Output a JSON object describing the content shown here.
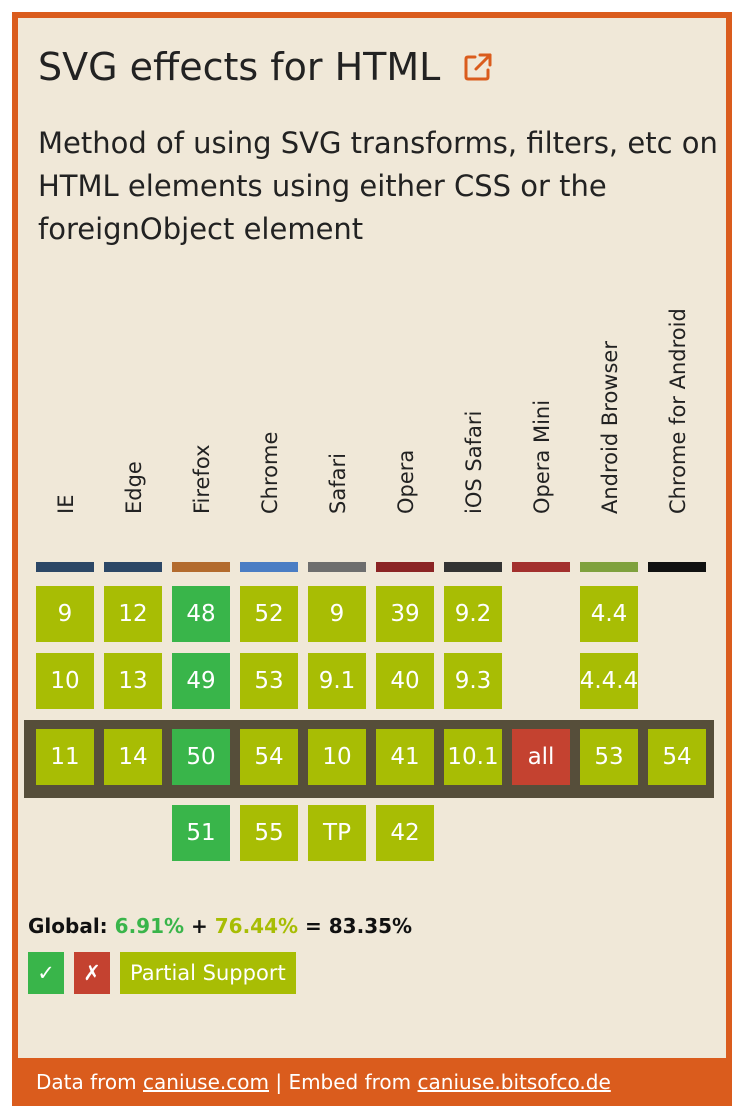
{
  "title": "SVG effects for HTML",
  "title_link_icon": "external-link-icon",
  "description": "Method of using SVG transforms, filters, etc on HTML elements using either CSS or the foreignObject element",
  "colors": {
    "border": "#da5c1d",
    "background": "#f0e8d8",
    "supported": "#39b54a",
    "partial": "#a8bd04",
    "unsupported": "#c44230",
    "current_row": "#564e3a"
  },
  "browsers": [
    {
      "name": "IE",
      "color": "#2c4766",
      "versions": [
        {
          "v": "9",
          "s": "a"
        },
        {
          "v": "10",
          "s": "a"
        },
        {
          "v": "11",
          "s": "a"
        },
        null
      ]
    },
    {
      "name": "Edge",
      "color": "#2c4766",
      "versions": [
        {
          "v": "12",
          "s": "a"
        },
        {
          "v": "13",
          "s": "a"
        },
        {
          "v": "14",
          "s": "a"
        },
        null
      ]
    },
    {
      "name": "Firefox",
      "color": "#b36b2e",
      "versions": [
        {
          "v": "48",
          "s": "y"
        },
        {
          "v": "49",
          "s": "y"
        },
        {
          "v": "50",
          "s": "y"
        },
        {
          "v": "51",
          "s": "y"
        }
      ]
    },
    {
      "name": "Chrome",
      "color": "#4a7dc4",
      "versions": [
        {
          "v": "52",
          "s": "a"
        },
        {
          "v": "53",
          "s": "a"
        },
        {
          "v": "54",
          "s": "a"
        },
        {
          "v": "55",
          "s": "a"
        }
      ]
    },
    {
      "name": "Safari",
      "color": "#6e6e6e",
      "versions": [
        {
          "v": "9",
          "s": "a"
        },
        {
          "v": "9.1",
          "s": "a"
        },
        {
          "v": "10",
          "s": "a"
        },
        {
          "v": "TP",
          "s": "a"
        }
      ]
    },
    {
      "name": "Opera",
      "color": "#8b2424",
      "versions": [
        {
          "v": "39",
          "s": "a"
        },
        {
          "v": "40",
          "s": "a"
        },
        {
          "v": "41",
          "s": "a"
        },
        {
          "v": "42",
          "s": "a"
        }
      ]
    },
    {
      "name": "iOS Safari",
      "color": "#333333",
      "versions": [
        {
          "v": "9.2",
          "s": "a"
        },
        {
          "v": "9.3",
          "s": "a"
        },
        {
          "v": "10.1",
          "s": "a"
        },
        null
      ]
    },
    {
      "name": "Opera Mini",
      "color": "#a3302d",
      "versions": [
        null,
        null,
        {
          "v": "all",
          "s": "n"
        },
        null
      ]
    },
    {
      "name": "Android Browser",
      "color": "#7fa13e",
      "versions": [
        {
          "v": "4.4",
          "s": "a"
        },
        {
          "v": "4.4.4",
          "s": "a"
        },
        {
          "v": "53",
          "s": "a"
        },
        null
      ]
    },
    {
      "name": "Chrome for Android",
      "color": "#111111",
      "versions": [
        null,
        null,
        {
          "v": "54",
          "s": "a"
        },
        null
      ]
    }
  ],
  "global": {
    "label": "Global:",
    "supported_pct": "6.91%",
    "plus": "+",
    "partial_pct": "76.44%",
    "equals": "=",
    "total_pct": "83.35%"
  },
  "legend": {
    "supported": "✓",
    "unsupported": "✗",
    "partial": "Partial Support"
  },
  "footer": {
    "data_from": "Data from",
    "caniuse_link": "caniuse.com",
    "separator": "| Embed from",
    "embed_link": "caniuse.bitsofco.de"
  }
}
